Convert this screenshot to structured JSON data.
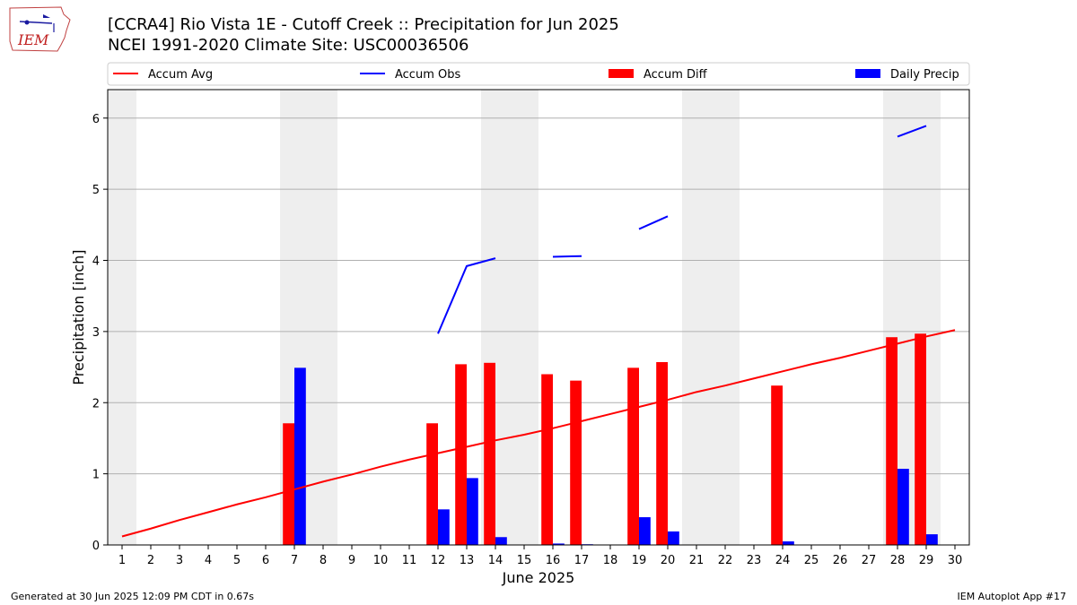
{
  "header": {
    "title_line1": "[CCRA4] Rio Vista 1E - Cutoff Creek :: Precipitation for Jun 2025",
    "title_line2": "NCEI 1991-2020 Climate Site: USC00036506"
  },
  "logo": {
    "text": "IEM",
    "icon": "iem-iowa-map-logo"
  },
  "footer": {
    "left": "Generated at 30 Jun 2025 12:09 PM CDT in 0.67s",
    "right": "IEM Autoplot App #17"
  },
  "colors": {
    "avg": "#ff0000",
    "obs": "#0000ff",
    "diff": "#ff0000",
    "daily": "#0000ff",
    "weekend": "#eeeeee",
    "grid": "#b0b0b0"
  },
  "chart_data": {
    "type": "bar",
    "xlabel": "June 2025",
    "ylabel": "Precipitation [inch]",
    "xlim": [
      0.5,
      30.5
    ],
    "ylim": [
      0,
      6.4
    ],
    "yticks": [
      0,
      1,
      2,
      3,
      4,
      5,
      6
    ],
    "grid": "horizontal",
    "legend_position": "top",
    "x": [
      1,
      2,
      3,
      4,
      5,
      6,
      7,
      8,
      9,
      10,
      11,
      12,
      13,
      14,
      15,
      16,
      17,
      18,
      19,
      20,
      21,
      22,
      23,
      24,
      25,
      26,
      27,
      28,
      29,
      30
    ],
    "shaded_days": [
      1,
      7,
      8,
      14,
      15,
      21,
      22,
      28,
      29
    ],
    "legend": [
      "Accum Avg",
      "Accum Obs",
      "Accum Diff",
      "Daily Precip"
    ],
    "series": [
      {
        "name": "Accum Avg",
        "kind": "line",
        "values": [
          0.12,
          0.23,
          0.35,
          0.46,
          0.57,
          0.67,
          0.78,
          0.89,
          0.99,
          1.1,
          1.2,
          1.29,
          1.38,
          1.47,
          1.55,
          1.64,
          1.74,
          1.84,
          1.94,
          2.04,
          2.15,
          2.24,
          2.34,
          2.44,
          2.54,
          2.63,
          2.73,
          2.83,
          2.93,
          3.02
        ]
      },
      {
        "name": "Accum Obs",
        "kind": "line",
        "values": [
          null,
          null,
          null,
          null,
          null,
          null,
          null,
          null,
          null,
          null,
          null,
          2.97,
          3.92,
          4.03,
          null,
          4.05,
          4.06,
          null,
          4.44,
          4.62,
          null,
          null,
          null,
          null,
          null,
          null,
          null,
          5.74,
          5.89,
          null
        ]
      },
      {
        "name": "Accum Diff",
        "kind": "bar",
        "values": [
          null,
          null,
          null,
          null,
          null,
          null,
          1.71,
          null,
          null,
          null,
          null,
          1.71,
          2.54,
          2.56,
          null,
          2.4,
          2.31,
          null,
          2.49,
          2.57,
          null,
          null,
          null,
          2.24,
          null,
          null,
          null,
          2.92,
          2.97,
          null
        ]
      },
      {
        "name": "Daily Precip",
        "kind": "bar",
        "values": [
          0,
          0,
          0,
          0,
          0,
          0,
          2.49,
          0,
          0,
          0,
          0,
          0.5,
          0.94,
          0.11,
          0,
          0.02,
          0.01,
          0,
          0.39,
          0.19,
          0,
          0,
          0,
          0.05,
          0,
          0,
          0,
          1.07,
          0.15,
          0
        ]
      }
    ]
  }
}
